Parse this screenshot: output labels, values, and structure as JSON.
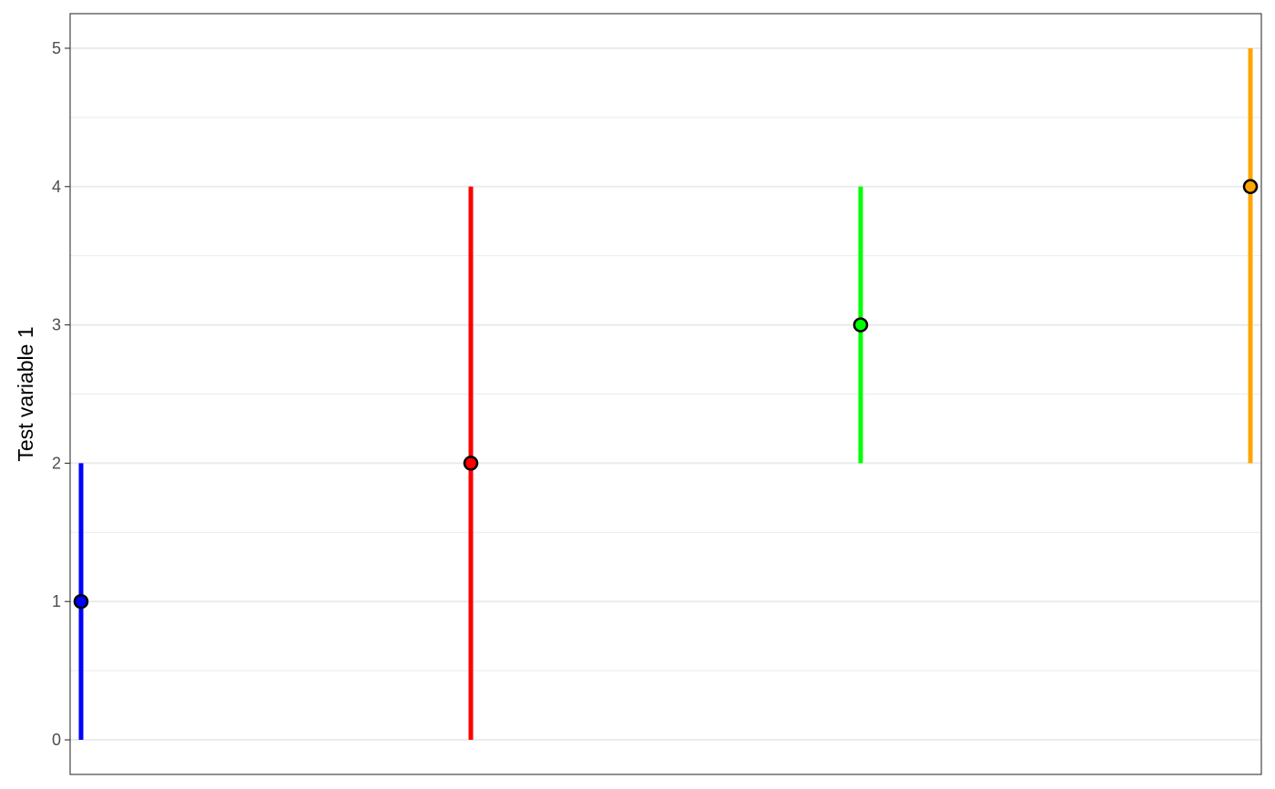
{
  "chart_data": {
    "type": "errorbar",
    "title": "",
    "xlabel": "",
    "ylabel": "Test variable 1",
    "x": [
      1,
      2,
      3,
      4
    ],
    "series": [
      {
        "values": [
          1,
          2,
          3,
          4
        ],
        "lower": [
          0,
          0,
          2,
          2
        ],
        "upper": [
          2,
          4,
          4,
          5
        ],
        "colors": [
          "#0000FF",
          "#FF0000",
          "#00FF00",
          "#FFA500"
        ]
      }
    ],
    "xlim": [
      1,
      4
    ],
    "ylim": [
      -0.25,
      5.25
    ],
    "yticks": [
      0,
      1,
      2,
      3,
      4,
      5
    ],
    "ytick_labels": [
      "0",
      "1",
      "2",
      "3",
      "4",
      "5"
    ],
    "y_minor_ticks": [
      0.5,
      1.5,
      2.5,
      3.5,
      4.5
    ],
    "grid": true,
    "legend": "none",
    "point_outline_color": "#000000",
    "grid_color": "#EBEBEB",
    "panel_border_color": "#333333"
  }
}
